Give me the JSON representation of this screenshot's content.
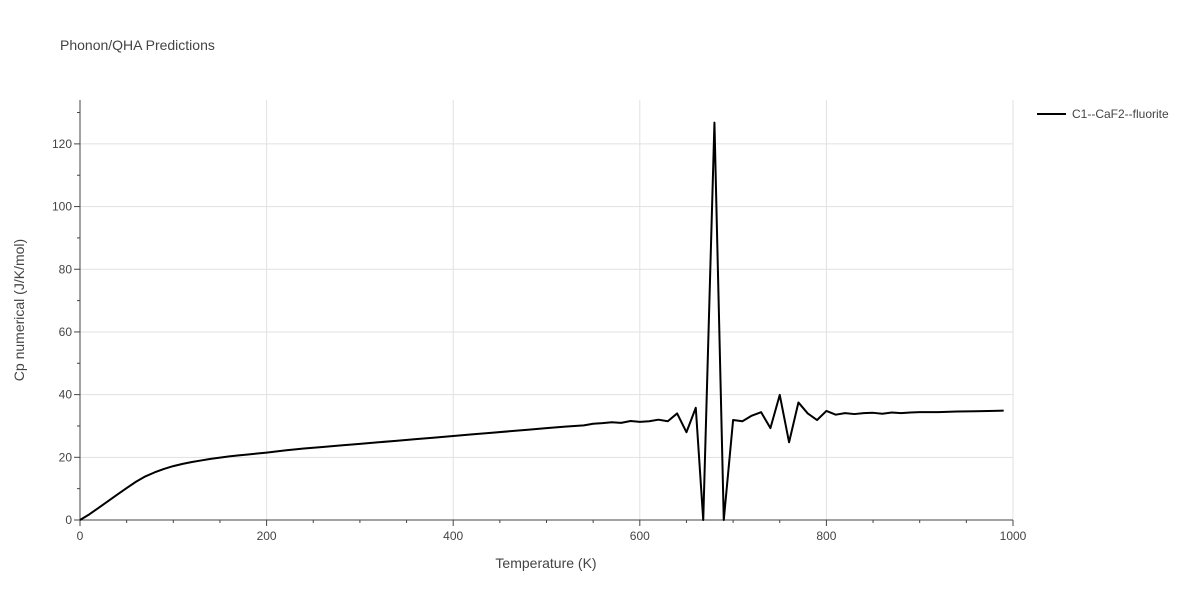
{
  "chart_data": {
    "type": "line",
    "title": "Phonon/QHA Predictions",
    "xlabel": "Temperature (K)",
    "ylabel": "Cp numerical (J/K/mol)",
    "xlim": [
      0,
      1000
    ],
    "ylim": [
      0,
      134
    ],
    "xticks": [
      0,
      200,
      400,
      600,
      800,
      1000
    ],
    "yticks": [
      0,
      20,
      40,
      60,
      80,
      100,
      120
    ],
    "grid": true,
    "legend_position": "top-right",
    "series": [
      {
        "name": "C1--CaF2--fluorite",
        "color": "#000000",
        "x": [
          0,
          10,
          20,
          30,
          40,
          50,
          60,
          70,
          80,
          90,
          100,
          110,
          120,
          130,
          140,
          150,
          160,
          170,
          180,
          190,
          200,
          220,
          240,
          260,
          280,
          300,
          320,
          340,
          360,
          380,
          400,
          420,
          440,
          460,
          480,
          500,
          520,
          540,
          550,
          560,
          570,
          580,
          590,
          600,
          610,
          620,
          630,
          640,
          650,
          660,
          668,
          680,
          690,
          700,
          710,
          720,
          730,
          740,
          750,
          760,
          770,
          780,
          790,
          800,
          810,
          820,
          830,
          840,
          850,
          860,
          870,
          880,
          890,
          900,
          920,
          940,
          960,
          980,
          990
        ],
        "y": [
          0,
          1.8,
          3.9,
          6.0,
          8.1,
          10.2,
          12.2,
          13.9,
          15.2,
          16.3,
          17.2,
          17.9,
          18.5,
          19.0,
          19.5,
          19.9,
          20.3,
          20.6,
          20.9,
          21.2,
          21.5,
          22.2,
          22.8,
          23.3,
          23.8,
          24.3,
          24.8,
          25.3,
          25.8,
          26.3,
          26.8,
          27.3,
          27.8,
          28.3,
          28.8,
          29.3,
          29.8,
          30.2,
          30.7,
          30.9,
          31.2,
          31.0,
          31.6,
          31.3,
          31.5,
          32.0,
          31.5,
          34.0,
          28.0,
          35.8,
          0,
          126.8,
          0,
          31.9,
          31.5,
          33.3,
          34.4,
          29.3,
          39.9,
          24.8,
          37.5,
          34.0,
          31.9,
          34.8,
          33.6,
          34.1,
          33.8,
          34.1,
          34.2,
          33.9,
          34.3,
          34.1,
          34.3,
          34.4,
          34.4,
          34.6,
          34.7,
          34.8,
          34.9
        ]
      }
    ]
  }
}
